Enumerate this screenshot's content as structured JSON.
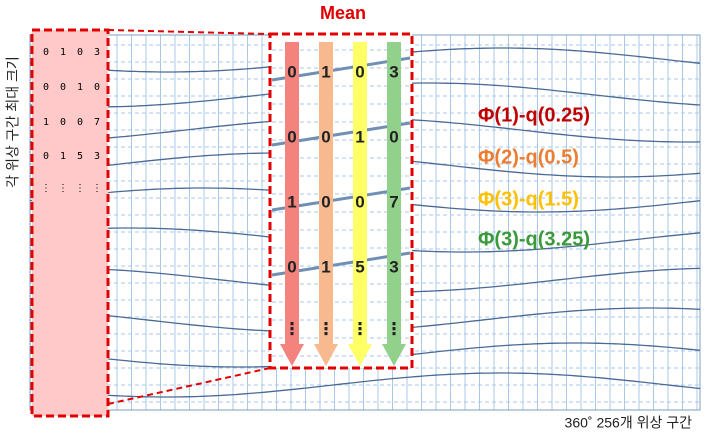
{
  "title": "Mean",
  "y_label": "각 위상 구간 최대 크기",
  "x_label": "360˚ 256개 위상 구간",
  "rows": [
    [
      "0",
      "1",
      "0",
      "3"
    ],
    [
      "0",
      "0",
      "1",
      "0"
    ],
    [
      "1",
      "0",
      "0",
      "7"
    ],
    [
      "0",
      "1",
      "5",
      "3"
    ],
    [
      "⋮",
      "⋮",
      "⋮",
      "⋮"
    ]
  ],
  "labels": [
    {
      "text": "Φ(1)-q(0.25)",
      "color": "#c00000"
    },
    {
      "text": "Φ(2)-q(0.5)",
      "color": "#ed7d31"
    },
    {
      "text": "Φ(3)-q(1.5)",
      "color": "#ffc000"
    },
    {
      "text": "Φ(3)-q(3.25)",
      "color": "#3a9a3a"
    }
  ]
}
